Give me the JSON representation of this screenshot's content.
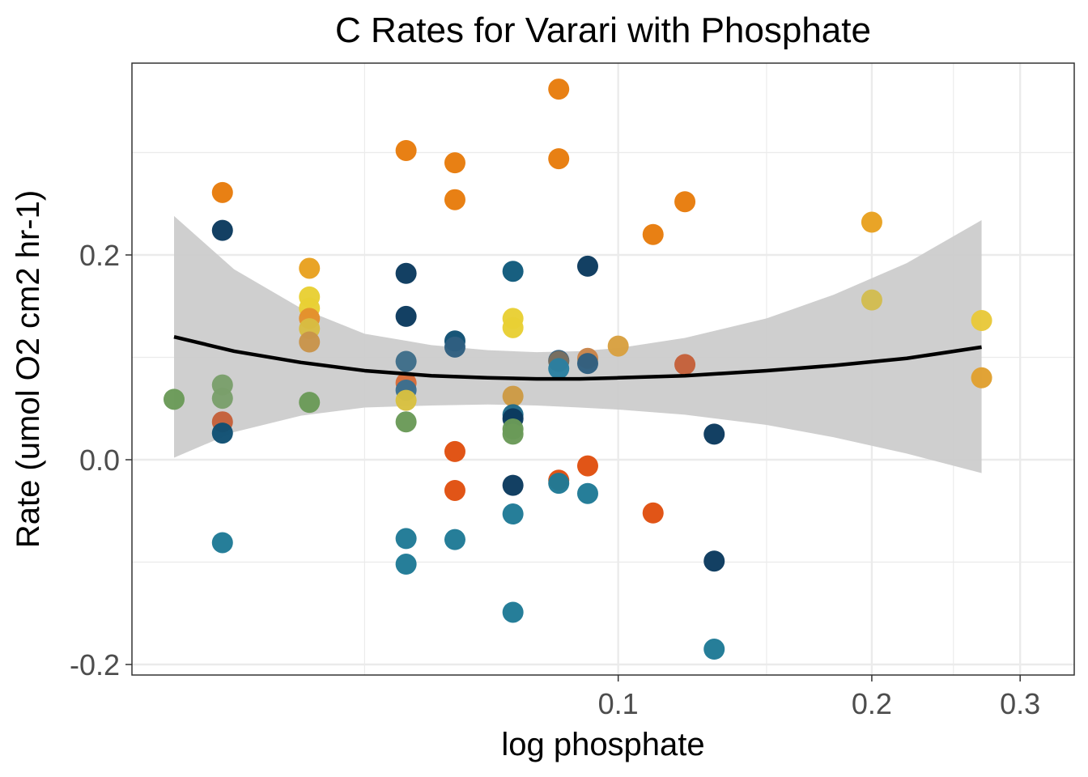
{
  "chart_data": {
    "type": "scatter",
    "title": "C Rates for Varari with Phosphate",
    "xlabel": "log phosphate",
    "ylabel": "Rate (umol O2 cm2 hr-1)",
    "x_scale": "log10",
    "xlim": [
      0.0297,
      0.31
    ],
    "ylim": [
      -0.21,
      0.39
    ],
    "x_ticks": [
      {
        "value": 0.1,
        "label": "0.1"
      },
      {
        "value": 0.2,
        "label": "0.2"
      },
      {
        "value": 0.3,
        "label": "0.3"
      }
    ],
    "x_minor_gridlines": [
      0.05,
      0.15,
      0.25
    ],
    "y_ticks": [
      {
        "value": -0.2,
        "label": "-0.2"
      },
      {
        "value": 0.0,
        "label": "0.0"
      },
      {
        "value": 0.2,
        "label": "0.2"
      }
    ],
    "y_minor_gridlines": [
      -0.1,
      0.1,
      0.3
    ],
    "grid": true,
    "legend": "none",
    "colors": {
      "fit_line": "#000000",
      "ribbon": "#cccccc",
      "gridline": "#ebebeb",
      "panel_border": "#333333"
    },
    "points": [
      {
        "x": 0.0297,
        "y": 0.059,
        "color": "#6a9a58"
      },
      {
        "x": 0.0339,
        "y": 0.261,
        "color": "#e77c0c"
      },
      {
        "x": 0.0339,
        "y": 0.224,
        "color": "#0b3a5e"
      },
      {
        "x": 0.0339,
        "y": 0.073,
        "color": "#7a9f6b"
      },
      {
        "x": 0.0339,
        "y": 0.06,
        "color": "#7a9f6b"
      },
      {
        "x": 0.0339,
        "y": 0.037,
        "color": "#c4603a"
      },
      {
        "x": 0.0339,
        "y": 0.026,
        "color": "#0f4f73"
      },
      {
        "x": 0.0339,
        "y": -0.081,
        "color": "#1f7a96"
      },
      {
        "x": 0.043,
        "y": 0.187,
        "color": "#e8a120"
      },
      {
        "x": 0.043,
        "y": 0.159,
        "color": "#e8cf34"
      },
      {
        "x": 0.043,
        "y": 0.148,
        "color": "#e8cf34"
      },
      {
        "x": 0.043,
        "y": 0.138,
        "color": "#e38f2c"
      },
      {
        "x": 0.043,
        "y": 0.128,
        "color": "#d8bc42"
      },
      {
        "x": 0.043,
        "y": 0.115,
        "color": "#c8944a"
      },
      {
        "x": 0.043,
        "y": 0.056,
        "color": "#6a9a58"
      },
      {
        "x": 0.056,
        "y": 0.302,
        "color": "#e77c0c"
      },
      {
        "x": 0.056,
        "y": 0.182,
        "color": "#0b3a5e"
      },
      {
        "x": 0.056,
        "y": 0.14,
        "color": "#0b3a5e"
      },
      {
        "x": 0.056,
        "y": 0.096,
        "color": "#3e6d89"
      },
      {
        "x": 0.056,
        "y": 0.075,
        "color": "#d86b38"
      },
      {
        "x": 0.056,
        "y": 0.068,
        "color": "#3a6f8f"
      },
      {
        "x": 0.056,
        "y": 0.058,
        "color": "#d8c040"
      },
      {
        "x": 0.056,
        "y": 0.037,
        "color": "#6a9a58"
      },
      {
        "x": 0.056,
        "y": -0.077,
        "color": "#1f7a96"
      },
      {
        "x": 0.056,
        "y": -0.102,
        "color": "#1f7a96"
      },
      {
        "x": 0.064,
        "y": 0.29,
        "color": "#e77c0c"
      },
      {
        "x": 0.064,
        "y": 0.254,
        "color": "#e77c0c"
      },
      {
        "x": 0.064,
        "y": 0.116,
        "color": "#0f4f73"
      },
      {
        "x": 0.064,
        "y": 0.11,
        "color": "#2f5f80"
      },
      {
        "x": 0.064,
        "y": 0.008,
        "color": "#e0500f"
      },
      {
        "x": 0.064,
        "y": -0.03,
        "color": "#e0500f"
      },
      {
        "x": 0.064,
        "y": -0.078,
        "color": "#1f7a96"
      },
      {
        "x": 0.075,
        "y": 0.184,
        "color": "#0f5a7c"
      },
      {
        "x": 0.075,
        "y": 0.138,
        "color": "#e8cf34"
      },
      {
        "x": 0.075,
        "y": 0.129,
        "color": "#e8cf34"
      },
      {
        "x": 0.075,
        "y": 0.062,
        "color": "#cc9a44"
      },
      {
        "x": 0.075,
        "y": 0.044,
        "color": "#1f6a8a"
      },
      {
        "x": 0.075,
        "y": 0.04,
        "color": "#0b3a5e"
      },
      {
        "x": 0.075,
        "y": 0.03,
        "color": "#6a9a58"
      },
      {
        "x": 0.075,
        "y": 0.025,
        "color": "#6a9a58"
      },
      {
        "x": 0.075,
        "y": -0.025,
        "color": "#0b3a5e"
      },
      {
        "x": 0.075,
        "y": -0.053,
        "color": "#1f7a96"
      },
      {
        "x": 0.075,
        "y": -0.149,
        "color": "#1f7a96"
      },
      {
        "x": 0.085,
        "y": 0.362,
        "color": "#e77c0c"
      },
      {
        "x": 0.085,
        "y": 0.294,
        "color": "#e77c0c"
      },
      {
        "x": 0.085,
        "y": 0.097,
        "color": "#2f5f80"
      },
      {
        "x": 0.085,
        "y": 0.096,
        "color": "#7a6f60"
      },
      {
        "x": 0.085,
        "y": 0.089,
        "color": "#2a7fa0"
      },
      {
        "x": 0.085,
        "y": -0.02,
        "color": "#e0500f"
      },
      {
        "x": 0.085,
        "y": -0.023,
        "color": "#1f7a96"
      },
      {
        "x": 0.092,
        "y": 0.189,
        "color": "#0b3a5e"
      },
      {
        "x": 0.092,
        "y": 0.099,
        "color": "#c8844a"
      },
      {
        "x": 0.092,
        "y": 0.094,
        "color": "#2f5f80"
      },
      {
        "x": 0.092,
        "y": -0.006,
        "color": "#e0500f"
      },
      {
        "x": 0.092,
        "y": -0.033,
        "color": "#1f7a96"
      },
      {
        "x": 0.1,
        "y": 0.111,
        "color": "#d8a040"
      },
      {
        "x": 0.11,
        "y": 0.22,
        "color": "#e77c0c"
      },
      {
        "x": 0.11,
        "y": -0.052,
        "color": "#e0500f"
      },
      {
        "x": 0.12,
        "y": 0.252,
        "color": "#e77c0c"
      },
      {
        "x": 0.12,
        "y": 0.093,
        "color": "#c4603a"
      },
      {
        "x": 0.13,
        "y": 0.025,
        "color": "#0b3a5e"
      },
      {
        "x": 0.13,
        "y": -0.099,
        "color": "#0b3a5e"
      },
      {
        "x": 0.13,
        "y": -0.185,
        "color": "#1f7a96"
      },
      {
        "x": 0.2,
        "y": 0.232,
        "color": "#e8a120"
      },
      {
        "x": 0.2,
        "y": 0.156,
        "color": "#d2bc50"
      },
      {
        "x": 0.27,
        "y": 0.136,
        "color": "#e8c83a"
      },
      {
        "x": 0.27,
        "y": 0.08,
        "color": "#e0a030"
      }
    ],
    "fit_line": [
      {
        "x": 0.0297,
        "y": 0.12
      },
      {
        "x": 0.035,
        "y": 0.106
      },
      {
        "x": 0.042,
        "y": 0.095
      },
      {
        "x": 0.05,
        "y": 0.087
      },
      {
        "x": 0.06,
        "y": 0.082
      },
      {
        "x": 0.07,
        "y": 0.08
      },
      {
        "x": 0.08,
        "y": 0.079
      },
      {
        "x": 0.09,
        "y": 0.079
      },
      {
        "x": 0.1,
        "y": 0.08
      },
      {
        "x": 0.12,
        "y": 0.082
      },
      {
        "x": 0.15,
        "y": 0.087
      },
      {
        "x": 0.18,
        "y": 0.092
      },
      {
        "x": 0.22,
        "y": 0.099
      },
      {
        "x": 0.27,
        "y": 0.11
      }
    ],
    "ribbon": [
      {
        "x": 0.0297,
        "lower": 0.002,
        "upper": 0.238
      },
      {
        "x": 0.035,
        "lower": 0.027,
        "upper": 0.186
      },
      {
        "x": 0.042,
        "lower": 0.043,
        "upper": 0.148
      },
      {
        "x": 0.05,
        "lower": 0.051,
        "upper": 0.123
      },
      {
        "x": 0.06,
        "lower": 0.053,
        "upper": 0.112
      },
      {
        "x": 0.07,
        "lower": 0.054,
        "upper": 0.107
      },
      {
        "x": 0.08,
        "lower": 0.053,
        "upper": 0.105
      },
      {
        "x": 0.09,
        "lower": 0.051,
        "upper": 0.106
      },
      {
        "x": 0.1,
        "lower": 0.049,
        "upper": 0.109
      },
      {
        "x": 0.12,
        "lower": 0.044,
        "upper": 0.119
      },
      {
        "x": 0.15,
        "lower": 0.034,
        "upper": 0.138
      },
      {
        "x": 0.18,
        "lower": 0.022,
        "upper": 0.161
      },
      {
        "x": 0.22,
        "lower": 0.006,
        "upper": 0.192
      },
      {
        "x": 0.27,
        "lower": -0.013,
        "upper": 0.234
      }
    ]
  }
}
